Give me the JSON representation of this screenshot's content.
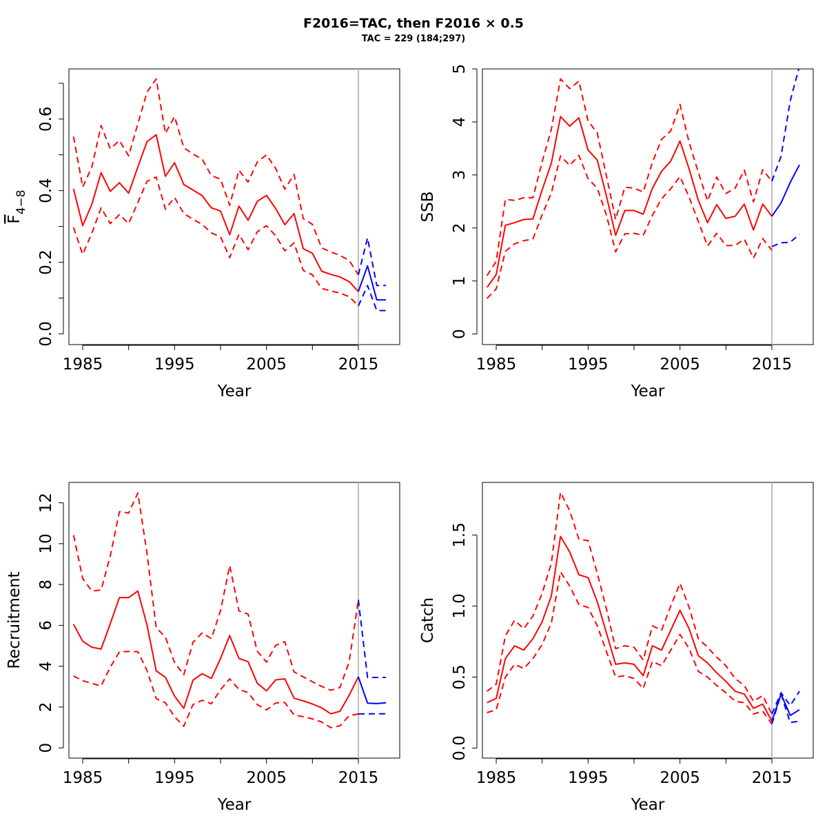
{
  "figure": {
    "title": "F2016=TAC, then F2016 × 0.5",
    "subtitle": "TAC = 229 (184;297)"
  },
  "chart_data": [
    {
      "type": "line",
      "xlabel": "Year",
      "ylabel_main": "F",
      "ylabel_sub": "4−8",
      "xlim": [
        1983.5,
        2019.5
      ],
      "ylim": [
        -0.03,
        0.74
      ],
      "xticks": [
        1985,
        1995,
        2005,
        2015
      ],
      "xminor": [
        1990,
        2000,
        2010
      ],
      "yticks": [
        0.0,
        0.2,
        0.4,
        0.6
      ],
      "yminor": [
        0.1,
        0.3,
        0.5,
        0.7
      ],
      "ytick_labels": [
        "0.0",
        "0.2",
        "0.4",
        "0.6"
      ],
      "vline": 2015,
      "series": [
        {
          "role": "estimate",
          "color": "#ff0000",
          "dash": false,
          "x_start": 1984,
          "values": [
            0.405,
            0.302,
            0.362,
            0.45,
            0.398,
            0.422,
            0.393,
            0.466,
            0.537,
            0.556,
            0.44,
            0.478,
            0.417,
            0.402,
            0.386,
            0.352,
            0.343,
            0.277,
            0.357,
            0.317,
            0.37,
            0.387,
            0.35,
            0.305,
            0.336,
            0.238,
            0.225,
            0.175,
            0.166,
            0.159,
            0.146,
            0.118
          ]
        },
        {
          "role": "upper",
          "color": "#ff0000",
          "dash": true,
          "x_start": 1984,
          "values": [
            0.551,
            0.41,
            0.466,
            0.582,
            0.517,
            0.54,
            0.497,
            0.587,
            0.675,
            0.712,
            0.56,
            0.607,
            0.52,
            0.502,
            0.488,
            0.442,
            0.432,
            0.359,
            0.457,
            0.424,
            0.48,
            0.5,
            0.462,
            0.404,
            0.445,
            0.322,
            0.306,
            0.24,
            0.229,
            0.219,
            0.205,
            0.165
          ]
        },
        {
          "role": "lower",
          "color": "#ff0000",
          "dash": true,
          "x_start": 1984,
          "values": [
            0.297,
            0.222,
            0.281,
            0.352,
            0.308,
            0.333,
            0.308,
            0.367,
            0.426,
            0.438,
            0.348,
            0.381,
            0.336,
            0.32,
            0.306,
            0.282,
            0.271,
            0.213,
            0.278,
            0.235,
            0.285,
            0.302,
            0.274,
            0.232,
            0.254,
            0.177,
            0.165,
            0.127,
            0.12,
            0.114,
            0.104,
            0.078
          ]
        },
        {
          "role": "forecast",
          "color": "#0000ff",
          "dash": false,
          "x_start": 2015,
          "values": [
            0.118,
            0.19,
            0.095,
            0.095
          ]
        },
        {
          "role": "forecast-upper",
          "color": "#0000ff",
          "dash": true,
          "x_start": 2015,
          "values": [
            0.165,
            0.268,
            0.135,
            0.135
          ]
        },
        {
          "role": "forecast-lower",
          "color": "#0000ff",
          "dash": true,
          "x_start": 2015,
          "values": [
            0.078,
            0.135,
            0.065,
            0.065
          ]
        }
      ]
    },
    {
      "type": "line",
      "xlabel": "Year",
      "ylabel": "SSB",
      "xlim": [
        1983.5,
        2019.5
      ],
      "ylim": [
        -0.2,
        5.0
      ],
      "xticks": [
        1985,
        1995,
        2005,
        2015
      ],
      "xminor": [
        1990,
        2000,
        2010
      ],
      "yticks": [
        0,
        1,
        2,
        3,
        4,
        5
      ],
      "yminor": [],
      "ytick_labels": [
        "0",
        "1",
        "2",
        "3",
        "4",
        "5"
      ],
      "vline": 2015,
      "series": [
        {
          "role": "estimate",
          "color": "#ff0000",
          "dash": false,
          "x_start": 1984,
          "values": [
            0.88,
            1.12,
            2.05,
            2.1,
            2.16,
            2.17,
            2.72,
            3.22,
            4.1,
            3.92,
            4.08,
            3.47,
            3.28,
            2.6,
            1.86,
            2.33,
            2.33,
            2.26,
            2.75,
            3.07,
            3.26,
            3.64,
            3.11,
            2.52,
            2.1,
            2.44,
            2.18,
            2.22,
            2.45,
            1.96,
            2.45,
            2.22
          ]
        },
        {
          "role": "upper",
          "color": "#ff0000",
          "dash": true,
          "x_start": 1984,
          "values": [
            1.1,
            1.37,
            2.54,
            2.52,
            2.57,
            2.57,
            3.25,
            3.86,
            4.81,
            4.63,
            4.77,
            4.02,
            3.79,
            2.98,
            2.16,
            2.77,
            2.75,
            2.68,
            3.24,
            3.67,
            3.83,
            4.33,
            3.61,
            3.05,
            2.51,
            2.96,
            2.65,
            2.75,
            3.09,
            2.49,
            3.1,
            2.88
          ]
        },
        {
          "role": "lower",
          "color": "#ff0000",
          "dash": true,
          "x_start": 1984,
          "values": [
            0.67,
            0.85,
            1.56,
            1.7,
            1.76,
            1.79,
            2.25,
            2.66,
            3.36,
            3.18,
            3.37,
            2.93,
            2.75,
            2.24,
            1.55,
            1.89,
            1.9,
            1.86,
            2.24,
            2.55,
            2.74,
            2.97,
            2.58,
            2.12,
            1.66,
            1.9,
            1.67,
            1.67,
            1.79,
            1.43,
            1.8,
            1.58
          ]
        },
        {
          "role": "forecast",
          "color": "#0000ff",
          "dash": false,
          "x_start": 2015,
          "values": [
            2.22,
            2.47,
            2.86,
            3.19
          ]
        },
        {
          "role": "forecast-upper",
          "color": "#0000ff",
          "dash": true,
          "x_start": 2015,
          "values": [
            2.88,
            3.35,
            4.4,
            5.05
          ]
        },
        {
          "role": "forecast-lower",
          "color": "#0000ff",
          "dash": true,
          "x_start": 2015,
          "values": [
            1.65,
            1.72,
            1.73,
            1.88
          ]
        }
      ]
    },
    {
      "type": "line",
      "xlabel": "Year",
      "ylabel": "Recruitment",
      "xlim": [
        1983.5,
        2019.5
      ],
      "ylim": [
        -0.5,
        13.0
      ],
      "xticks": [
        1985,
        1995,
        2005,
        2015
      ],
      "xminor": [
        1990,
        2000,
        2010
      ],
      "yticks": [
        0,
        2,
        4,
        6,
        8,
        10,
        12
      ],
      "yminor": [],
      "ytick_labels": [
        "0",
        "2",
        "4",
        "6",
        "8",
        "10",
        "12"
      ],
      "vline": 2015,
      "series": [
        {
          "role": "estimate",
          "color": "#ff0000",
          "dash": false,
          "x_start": 1984,
          "values": [
            6.05,
            5.22,
            4.93,
            4.84,
            6.08,
            7.36,
            7.36,
            7.68,
            6.02,
            3.77,
            3.46,
            2.53,
            1.94,
            3.31,
            3.63,
            3.4,
            4.38,
            5.5,
            4.38,
            4.22,
            3.17,
            2.79,
            3.33,
            3.38,
            2.43,
            2.3,
            2.15,
            1.96,
            1.67,
            1.79,
            2.58,
            3.48
          ]
        },
        {
          "role": "upper",
          "color": "#ff0000",
          "dash": true,
          "x_start": 1984,
          "values": [
            10.42,
            8.3,
            7.68,
            7.73,
            9.4,
            11.57,
            11.5,
            12.48,
            9.53,
            5.88,
            5.43,
            4.18,
            3.58,
            5.17,
            5.63,
            5.35,
            6.72,
            8.93,
            6.71,
            6.55,
            4.73,
            4.2,
            5.02,
            5.2,
            3.72,
            3.48,
            3.24,
            3.01,
            2.82,
            2.96,
            4.22,
            7.25
          ]
        },
        {
          "role": "lower",
          "color": "#ff0000",
          "dash": true,
          "x_start": 1984,
          "values": [
            3.52,
            3.29,
            3.16,
            3.03,
            3.95,
            4.7,
            4.72,
            4.71,
            3.79,
            2.41,
            2.21,
            1.52,
            1.06,
            2.12,
            2.33,
            2.16,
            2.85,
            3.38,
            2.86,
            2.71,
            2.12,
            1.86,
            2.2,
            2.22,
            1.61,
            1.53,
            1.42,
            1.27,
            0.99,
            1.08,
            1.58,
            1.66
          ]
        },
        {
          "role": "forecast",
          "color": "#0000ff",
          "dash": false,
          "x_start": 2015,
          "values": [
            3.48,
            2.19,
            2.17,
            2.21
          ]
        },
        {
          "role": "forecast-upper",
          "color": "#0000ff",
          "dash": true,
          "x_start": 2015,
          "values": [
            7.25,
            3.45,
            3.45,
            3.45
          ]
        },
        {
          "role": "forecast-lower",
          "color": "#0000ff",
          "dash": true,
          "x_start": 2015,
          "values": [
            1.66,
            1.67,
            1.67,
            1.67
          ]
        }
      ]
    },
    {
      "type": "line",
      "xlabel": "Year",
      "ylabel": "Catch",
      "xlim": [
        1983.5,
        2019.5
      ],
      "ylim": [
        -0.07,
        1.87
      ],
      "xticks": [
        1985,
        1995,
        2005,
        2015
      ],
      "xminor": [
        1990,
        2000,
        2010
      ],
      "yticks": [
        0.0,
        0.5,
        1.0,
        1.5
      ],
      "yminor": [],
      "ytick_labels": [
        "0.0",
        "0.5",
        "1.0",
        "1.5"
      ],
      "vline": 2015,
      "series": [
        {
          "role": "estimate",
          "color": "#ff0000",
          "dash": false,
          "x_start": 1984,
          "values": [
            0.32,
            0.35,
            0.63,
            0.72,
            0.69,
            0.77,
            0.89,
            1.07,
            1.49,
            1.38,
            1.22,
            1.2,
            1.03,
            0.81,
            0.59,
            0.6,
            0.59,
            0.51,
            0.72,
            0.69,
            0.83,
            0.97,
            0.84,
            0.65,
            0.6,
            0.53,
            0.47,
            0.4,
            0.38,
            0.28,
            0.31,
            0.19
          ]
        },
        {
          "role": "upper",
          "color": "#ff0000",
          "dash": true,
          "x_start": 1984,
          "values": [
            0.4,
            0.45,
            0.79,
            0.9,
            0.84,
            0.93,
            1.09,
            1.3,
            1.8,
            1.67,
            1.47,
            1.46,
            1.23,
            0.98,
            0.7,
            0.72,
            0.71,
            0.62,
            0.86,
            0.83,
            1.0,
            1.16,
            0.99,
            0.77,
            0.71,
            0.64,
            0.58,
            0.49,
            0.44,
            0.33,
            0.37,
            0.24
          ]
        },
        {
          "role": "lower",
          "color": "#ff0000",
          "dash": true,
          "x_start": 1984,
          "values": [
            0.25,
            0.27,
            0.5,
            0.59,
            0.56,
            0.63,
            0.73,
            0.88,
            1.24,
            1.14,
            1.01,
            0.99,
            0.86,
            0.68,
            0.5,
            0.51,
            0.49,
            0.42,
            0.61,
            0.58,
            0.69,
            0.8,
            0.7,
            0.54,
            0.5,
            0.44,
            0.39,
            0.33,
            0.32,
            0.24,
            0.26,
            0.17
          ]
        },
        {
          "role": "forecast",
          "color": "#0000ff",
          "dash": false,
          "x_start": 2015,
          "values": [
            0.19,
            0.38,
            0.23,
            0.27
          ]
        },
        {
          "role": "forecast-upper",
          "color": "#0000ff",
          "dash": true,
          "x_start": 2015,
          "values": [
            0.24,
            0.39,
            0.3,
            0.4
          ]
        },
        {
          "role": "forecast-lower",
          "color": "#0000ff",
          "dash": true,
          "x_start": 2015,
          "values": [
            0.17,
            0.38,
            0.18,
            0.19
          ]
        }
      ]
    }
  ]
}
